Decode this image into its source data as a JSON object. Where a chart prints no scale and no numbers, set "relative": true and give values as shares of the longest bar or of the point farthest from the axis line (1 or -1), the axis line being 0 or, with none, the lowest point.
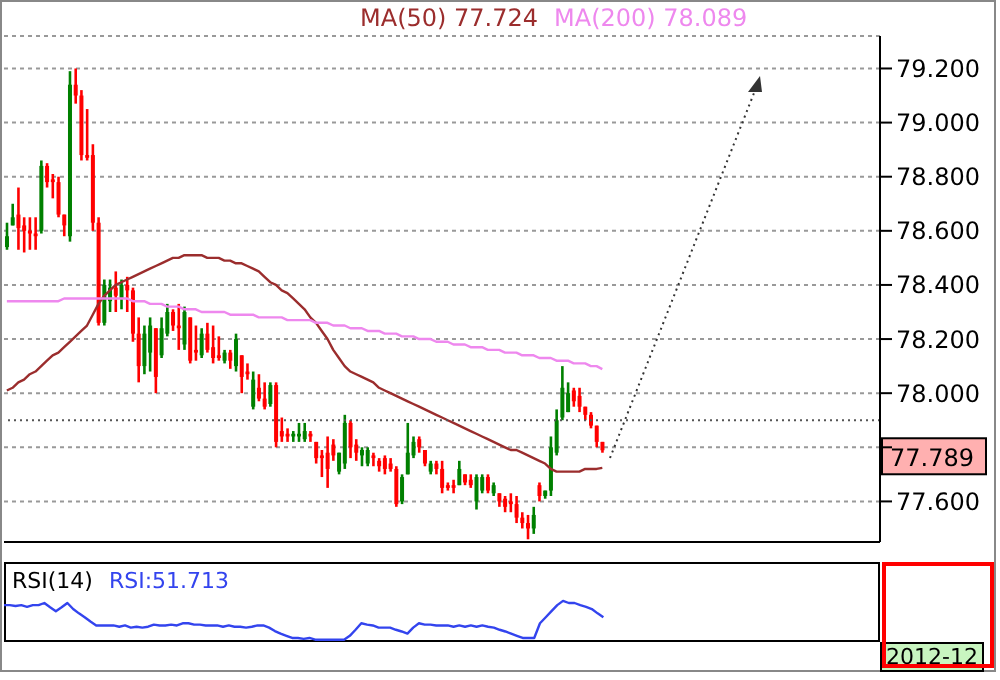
{
  "chart_data": [
    {
      "type": "candlestick",
      "categories": [
        null,
        null,
        null,
        null,
        null,
        null,
        null,
        null,
        null,
        null,
        null,
        null,
        null,
        null,
        null,
        null,
        null,
        null,
        null,
        null,
        null,
        null,
        null,
        null,
        null,
        null,
        null,
        null,
        null,
        null,
        null,
        null,
        null,
        null,
        null,
        null,
        null,
        null,
        null,
        null,
        null,
        null,
        null,
        null,
        null,
        null,
        null,
        null,
        null,
        null,
        null,
        null,
        null,
        null,
        null,
        null,
        null,
        null,
        null,
        null,
        null,
        null,
        null,
        null,
        null,
        null,
        null,
        null,
        null,
        null,
        null,
        null,
        null,
        null,
        null,
        null,
        null,
        null,
        null,
        null,
        null,
        null,
        null,
        null,
        null,
        null,
        null,
        null,
        null,
        null,
        null,
        null,
        null,
        null,
        null,
        null,
        null,
        null,
        null,
        null,
        null,
        null,
        null,
        null,
        null,
        null,
        null,
        null,
        null,
        null,
        null,
        null,
        null,
        null,
        null,
        null,
        null,
        null,
        null,
        null,
        null,
        null,
        null,
        null,
        null,
        null,
        null,
        null,
        null,
        null,
        null,
        null,
        null,
        null,
        null,
        null,
        null,
        null,
        null,
        null,
        null,
        null,
        null,
        null,
        null,
        null,
        null,
        null,
        null,
        null,
        null,
        null,
        null
      ],
      "ohlc": [
        [
          78.54,
          78.63,
          78.53,
          78.58
        ],
        [
          78.62,
          78.7,
          78.62,
          78.65
        ],
        [
          78.66,
          78.76,
          78.53,
          78.61
        ],
        [
          78.62,
          78.65,
          78.52,
          78.6
        ],
        [
          78.6,
          78.65,
          78.53,
          78.59
        ],
        [
          78.59,
          78.65,
          78.53,
          78.58
        ],
        [
          78.6,
          78.86,
          78.59,
          78.84
        ],
        [
          78.84,
          78.85,
          78.76,
          78.78
        ],
        [
          78.79,
          78.81,
          78.72,
          78.78
        ],
        [
          78.78,
          78.8,
          78.65,
          78.66
        ],
        [
          78.66,
          78.66,
          78.58,
          78.62
        ],
        [
          78.58,
          79.19,
          78.56,
          79.14
        ],
        [
          79.14,
          79.2,
          79.07,
          79.1
        ],
        [
          79.1,
          79.12,
          78.86,
          78.88
        ],
        [
          78.88,
          79.05,
          78.86,
          78.87
        ],
        [
          78.88,
          78.92,
          78.6,
          78.63
        ],
        [
          78.63,
          78.65,
          78.25,
          78.26
        ],
        [
          78.26,
          78.42,
          78.25,
          78.4
        ],
        [
          78.34,
          78.42,
          78.3,
          78.39
        ],
        [
          78.39,
          78.45,
          78.3,
          78.36
        ],
        [
          78.35,
          78.42,
          78.31,
          78.4
        ],
        [
          78.4,
          78.43,
          78.3,
          78.38
        ],
        [
          78.38,
          78.39,
          78.19,
          78.22
        ],
        [
          78.22,
          78.28,
          78.04,
          78.1
        ],
        [
          78.1,
          78.25,
          78.07,
          78.22
        ],
        [
          78.15,
          78.28,
          78.08,
          78.25
        ],
        [
          78.24,
          78.24,
          78.0,
          78.06
        ],
        [
          78.14,
          78.28,
          78.13,
          78.24
        ],
        [
          78.22,
          78.33,
          78.21,
          78.3
        ],
        [
          78.3,
          78.31,
          78.23,
          78.25
        ],
        [
          78.25,
          78.33,
          78.16,
          78.24
        ],
        [
          78.18,
          78.32,
          78.16,
          78.3
        ],
        [
          78.28,
          78.28,
          78.11,
          78.12
        ],
        [
          78.16,
          78.25,
          78.12,
          78.15
        ],
        [
          78.14,
          78.24,
          78.13,
          78.22
        ],
        [
          78.22,
          78.26,
          78.15,
          78.16
        ],
        [
          78.17,
          78.25,
          78.11,
          78.13
        ],
        [
          78.14,
          78.21,
          78.12,
          78.13
        ],
        [
          78.12,
          78.16,
          78.11,
          78.15
        ],
        [
          78.15,
          78.16,
          78.09,
          78.12
        ],
        [
          78.1,
          78.22,
          78.08,
          78.2
        ],
        [
          78.14,
          78.14,
          78.0,
          78.06
        ],
        [
          78.08,
          78.11,
          78.05,
          78.07
        ],
        [
          77.95,
          78.08,
          77.94,
          78.05
        ],
        [
          78.02,
          78.07,
          77.97,
          77.98
        ],
        [
          77.98,
          78.04,
          77.94,
          77.95
        ],
        [
          77.96,
          78.04,
          77.95,
          78.03
        ],
        [
          78.03,
          78.04,
          77.8,
          77.82
        ],
        [
          77.86,
          77.91,
          77.82,
          77.84
        ],
        [
          77.85,
          77.87,
          77.82,
          77.84
        ],
        [
          77.84,
          77.86,
          77.82,
          77.85
        ],
        [
          77.84,
          77.89,
          77.82,
          77.85
        ],
        [
          77.83,
          77.89,
          77.82,
          77.86
        ],
        [
          77.85,
          77.86,
          77.82,
          77.84
        ],
        [
          77.82,
          77.82,
          77.74,
          77.76
        ],
        [
          77.77,
          77.79,
          77.69,
          77.76
        ],
        [
          77.78,
          77.84,
          77.65,
          77.72
        ],
        [
          77.81,
          77.83,
          77.75,
          77.77
        ],
        [
          77.71,
          77.78,
          77.7,
          77.78
        ],
        [
          77.74,
          77.92,
          77.72,
          77.89
        ],
        [
          77.89,
          77.9,
          77.76,
          77.8
        ],
        [
          77.81,
          77.83,
          77.75,
          77.78
        ],
        [
          77.77,
          77.8,
          77.73,
          77.79
        ],
        [
          77.74,
          77.8,
          77.73,
          77.79
        ],
        [
          77.77,
          77.78,
          77.73,
          77.76
        ],
        [
          77.75,
          77.76,
          77.71,
          77.73
        ],
        [
          77.76,
          77.77,
          77.7,
          77.72
        ],
        [
          77.74,
          77.76,
          77.71,
          77.72
        ],
        [
          77.72,
          77.73,
          77.58,
          77.59
        ],
        [
          77.6,
          77.7,
          77.59,
          77.69
        ],
        [
          77.7,
          77.89,
          77.7,
          77.78
        ],
        [
          77.77,
          77.84,
          77.76,
          77.82
        ],
        [
          77.83,
          77.84,
          77.78,
          77.8
        ],
        [
          77.79,
          77.79,
          77.73,
          77.74
        ],
        [
          77.71,
          77.75,
          77.7,
          77.74
        ],
        [
          77.74,
          77.75,
          77.7,
          77.72
        ],
        [
          77.72,
          77.75,
          77.63,
          77.65
        ],
        [
          77.66,
          77.67,
          77.64,
          77.65
        ],
        [
          77.66,
          77.68,
          77.63,
          77.65
        ],
        [
          77.66,
          77.75,
          77.66,
          77.72
        ],
        [
          77.7,
          77.7,
          77.66,
          77.67
        ],
        [
          77.68,
          77.7,
          77.65,
          77.66
        ],
        [
          77.6,
          77.7,
          77.57,
          77.69
        ],
        [
          77.64,
          77.7,
          77.63,
          77.69
        ],
        [
          77.69,
          77.7,
          77.63,
          77.64
        ],
        [
          77.63,
          77.67,
          77.62,
          77.66
        ],
        [
          77.63,
          77.63,
          77.58,
          77.6
        ],
        [
          77.61,
          77.62,
          77.56,
          77.58
        ],
        [
          77.6,
          77.63,
          77.56,
          77.59
        ],
        [
          77.59,
          77.62,
          77.52,
          77.54
        ],
        [
          77.54,
          77.56,
          77.5,
          77.52
        ],
        [
          77.52,
          77.55,
          77.46,
          77.5
        ],
        [
          77.5,
          77.58,
          77.48,
          77.55
        ],
        [
          77.66,
          77.67,
          77.6,
          77.62
        ],
        [
          77.62,
          77.64,
          77.61,
          77.64
        ],
        [
          77.64,
          77.84,
          77.62,
          77.8
        ],
        [
          77.78,
          77.94,
          77.77,
          77.9
        ],
        [
          77.91,
          78.1,
          77.9,
          78.02
        ],
        [
          77.93,
          78.04,
          77.93,
          78.0
        ],
        [
          78.01,
          78.02,
          77.95,
          77.97
        ],
        [
          77.99,
          78.02,
          77.93,
          77.95
        ],
        [
          77.95,
          77.95,
          77.9,
          77.92
        ],
        [
          77.92,
          77.93,
          77.87,
          77.88
        ],
        [
          77.88,
          77.88,
          77.8,
          77.82
        ],
        [
          77.82,
          77.82,
          77.78,
          77.789
        ],
        null,
        null,
        null,
        null,
        null,
        null,
        null,
        null,
        null,
        null,
        null,
        null,
        null,
        null,
        null,
        null,
        null,
        null,
        null,
        null,
        null,
        null,
        null,
        null,
        null,
        null,
        null,
        null,
        null,
        null,
        null,
        null,
        null,
        null,
        null,
        null,
        null,
        null,
        null,
        null,
        null,
        null,
        null,
        null,
        null,
        null,
        null,
        null
      ],
      "series": [
        {
          "type": "line",
          "name": "MA(50) 77.724",
          "color": "#9b2d2d",
          "values": [
            78.01,
            78.02,
            78.04,
            78.05,
            78.07,
            78.08,
            78.1,
            78.12,
            78.14,
            78.15,
            78.17,
            78.19,
            78.21,
            78.23,
            78.25,
            78.29,
            78.33,
            78.36,
            78.38,
            78.4,
            78.41,
            78.42,
            78.43,
            78.44,
            78.45,
            78.46,
            78.47,
            78.48,
            78.49,
            78.5,
            78.5,
            78.51,
            78.51,
            78.51,
            78.51,
            78.5,
            78.5,
            78.5,
            78.49,
            78.49,
            78.48,
            78.48,
            78.47,
            78.46,
            78.45,
            78.43,
            78.41,
            78.4,
            78.38,
            78.37,
            78.35,
            78.33,
            78.31,
            78.28,
            78.26,
            78.23,
            78.2,
            78.16,
            78.13,
            78.1,
            78.08,
            78.07,
            78.06,
            78.05,
            78.04,
            78.02,
            78.01,
            78.0,
            77.99,
            77.98,
            77.97,
            77.96,
            77.95,
            77.94,
            77.93,
            77.92,
            77.91,
            77.9,
            77.89,
            77.88,
            77.87,
            77.86,
            77.85,
            77.84,
            77.83,
            77.82,
            77.81,
            77.8,
            77.79,
            77.79,
            77.78,
            77.77,
            77.76,
            77.75,
            77.74,
            77.72,
            77.71,
            77.71,
            77.71,
            77.71,
            77.71,
            77.72,
            77.72,
            77.72,
            77.724,
            null,
            null,
            null,
            null,
            null,
            null,
            null,
            null,
            null,
            null,
            null,
            null,
            null,
            null,
            null,
            null,
            null,
            null,
            null,
            null,
            null,
            null,
            null,
            null,
            null,
            null,
            null,
            null,
            null,
            null,
            null,
            null,
            null,
            null,
            null,
            null,
            null,
            null,
            null,
            null,
            null,
            null,
            null,
            null,
            null,
            null,
            null,
            null
          ]
        },
        {
          "type": "line",
          "name": "MA(200) 78.089",
          "color": "#ee88ee",
          "values": [
            78.34,
            78.34,
            78.34,
            78.34,
            78.34,
            78.34,
            78.34,
            78.34,
            78.34,
            78.34,
            78.35,
            78.35,
            78.35,
            78.35,
            78.35,
            78.35,
            78.35,
            78.35,
            78.35,
            78.35,
            78.35,
            78.35,
            78.34,
            78.34,
            78.34,
            78.33,
            78.33,
            78.33,
            78.32,
            78.32,
            78.32,
            78.31,
            78.31,
            78.31,
            78.3,
            78.3,
            78.3,
            78.3,
            78.3,
            78.29,
            78.29,
            78.29,
            78.29,
            78.29,
            78.28,
            78.28,
            78.28,
            78.28,
            78.28,
            78.27,
            78.27,
            78.27,
            78.27,
            78.27,
            78.26,
            78.26,
            78.26,
            78.25,
            78.25,
            78.25,
            78.24,
            78.24,
            78.24,
            78.23,
            78.23,
            78.23,
            78.22,
            78.22,
            78.22,
            78.21,
            78.21,
            78.21,
            78.2,
            78.2,
            78.2,
            78.19,
            78.19,
            78.19,
            78.18,
            78.18,
            78.18,
            78.17,
            78.17,
            78.17,
            78.16,
            78.16,
            78.16,
            78.15,
            78.15,
            78.15,
            78.14,
            78.14,
            78.14,
            78.13,
            78.13,
            78.13,
            78.12,
            78.12,
            78.12,
            78.11,
            78.11,
            78.11,
            78.1,
            78.1,
            78.089,
            null,
            null,
            null,
            null,
            null,
            null,
            null,
            null,
            null,
            null,
            null,
            null,
            null,
            null,
            null,
            null,
            null,
            null,
            null,
            null,
            null,
            null,
            null,
            null,
            null,
            null,
            null,
            null,
            null,
            null,
            null,
            null,
            null,
            null,
            null,
            null,
            null,
            null,
            null,
            null,
            null,
            null,
            null,
            null,
            null,
            null,
            null,
            null
          ]
        }
      ],
      "ylim": [
        77.45,
        79.32
      ],
      "yticks": [
        {
          "value": 77.6,
          "label": "77.600"
        },
        {
          "value": 77.8,
          "label": null
        },
        {
          "value": 78.0,
          "label": "78.000"
        },
        {
          "value": 78.2,
          "label": "78.200"
        },
        {
          "value": 78.4,
          "label": "78.400"
        },
        {
          "value": 78.6,
          "label": "78.600"
        },
        {
          "value": 78.8,
          "label": "78.800"
        },
        {
          "value": 79.0,
          "label": "79.000"
        },
        {
          "value": 79.2,
          "label": "79.200"
        }
      ],
      "grid": "y",
      "legend": "top",
      "tick_labels": "y",
      "ref_lines": [
        {
          "axis": "y",
          "value": 77.9,
          "color": "#555555",
          "line_style": "dotted"
        }
      ],
      "annotations": [
        "77.789"
      ]
    },
    {
      "type": "line",
      "title": "RSI(14)",
      "relative": true,
      "tick_labels": false,
      "categories": [
        null,
        null,
        null,
        null,
        null,
        null,
        null,
        null,
        null,
        null,
        null,
        null,
        null,
        null,
        null,
        null,
        null,
        null,
        null,
        null,
        null,
        null,
        null,
        null,
        null,
        null,
        null,
        null,
        null,
        null,
        null,
        null,
        null,
        null,
        null,
        null,
        null,
        null,
        null,
        null,
        null,
        null,
        null,
        null,
        null,
        null,
        null,
        null,
        null,
        null,
        null,
        null,
        null,
        null,
        null,
        null,
        null,
        null,
        null,
        null,
        null,
        null,
        null,
        null,
        null,
        null,
        null,
        null,
        null,
        null,
        null,
        null,
        null,
        null,
        null,
        null,
        null,
        null,
        null,
        null,
        null,
        null,
        null,
        null,
        null,
        null,
        null,
        null,
        null,
        null,
        null,
        null,
        null,
        null,
        null,
        null,
        null,
        null,
        null,
        null,
        null,
        null,
        null,
        null,
        null,
        null,
        null,
        null,
        null,
        null,
        null,
        null,
        null,
        null,
        null,
        null,
        null,
        null,
        null,
        null,
        null,
        null,
        null,
        null,
        null,
        null,
        null,
        null,
        null,
        null,
        null,
        null,
        null,
        null,
        null,
        null,
        null,
        null,
        null,
        null,
        null,
        null,
        null,
        null,
        null,
        null,
        null,
        null,
        null,
        null,
        null,
        null,
        null
      ],
      "series": [
        {
          "name": "RSI:51.713",
          "color": "#3344ee",
          "values": [
            0.9,
            0.9,
            0.88,
            0.9,
            0.86,
            0.9,
            0.9,
            0.95,
            0.85,
            0.76,
            0.85,
            0.95,
            0.81,
            0.71,
            0.62,
            0.52,
            0.43,
            0.43,
            0.43,
            0.43,
            0.4,
            0.43,
            0.38,
            0.4,
            0.38,
            0.4,
            0.45,
            0.43,
            0.43,
            0.45,
            0.43,
            0.48,
            0.48,
            0.45,
            0.45,
            0.43,
            0.43,
            0.43,
            0.4,
            0.43,
            0.4,
            0.4,
            0.38,
            0.4,
            0.43,
            0.43,
            0.38,
            0.3,
            0.24,
            0.19,
            0.14,
            0.14,
            0.12,
            0.14,
            0.1,
            0.1,
            0.1,
            0.1,
            0.1,
            0.1,
            0.19,
            0.33,
            0.48,
            0.45,
            0.43,
            0.38,
            0.38,
            0.38,
            0.33,
            0.29,
            0.24,
            0.38,
            0.48,
            0.45,
            0.45,
            0.43,
            0.43,
            0.43,
            0.4,
            0.43,
            0.4,
            0.43,
            0.4,
            0.43,
            0.4,
            0.38,
            0.33,
            0.29,
            0.24,
            0.19,
            0.14,
            0.14,
            0.14,
            0.48,
            0.62,
            0.76,
            0.9,
            1,
            0.95,
            0.95,
            0.9,
            0.86,
            0.81,
            0.71,
            0.62,
            null,
            null,
            null,
            null,
            null,
            null,
            null,
            null,
            null,
            null,
            null,
            null,
            null,
            null,
            null,
            null,
            null,
            null,
            null,
            null,
            null,
            null,
            null,
            null,
            null,
            null,
            null,
            null,
            null,
            null,
            null,
            null,
            null,
            null,
            null,
            null,
            null,
            null,
            null,
            null,
            null,
            null,
            null,
            null,
            null,
            null,
            null,
            null
          ]
        }
      ],
      "annotations": [
        "2012-12"
      ]
    }
  ]
}
